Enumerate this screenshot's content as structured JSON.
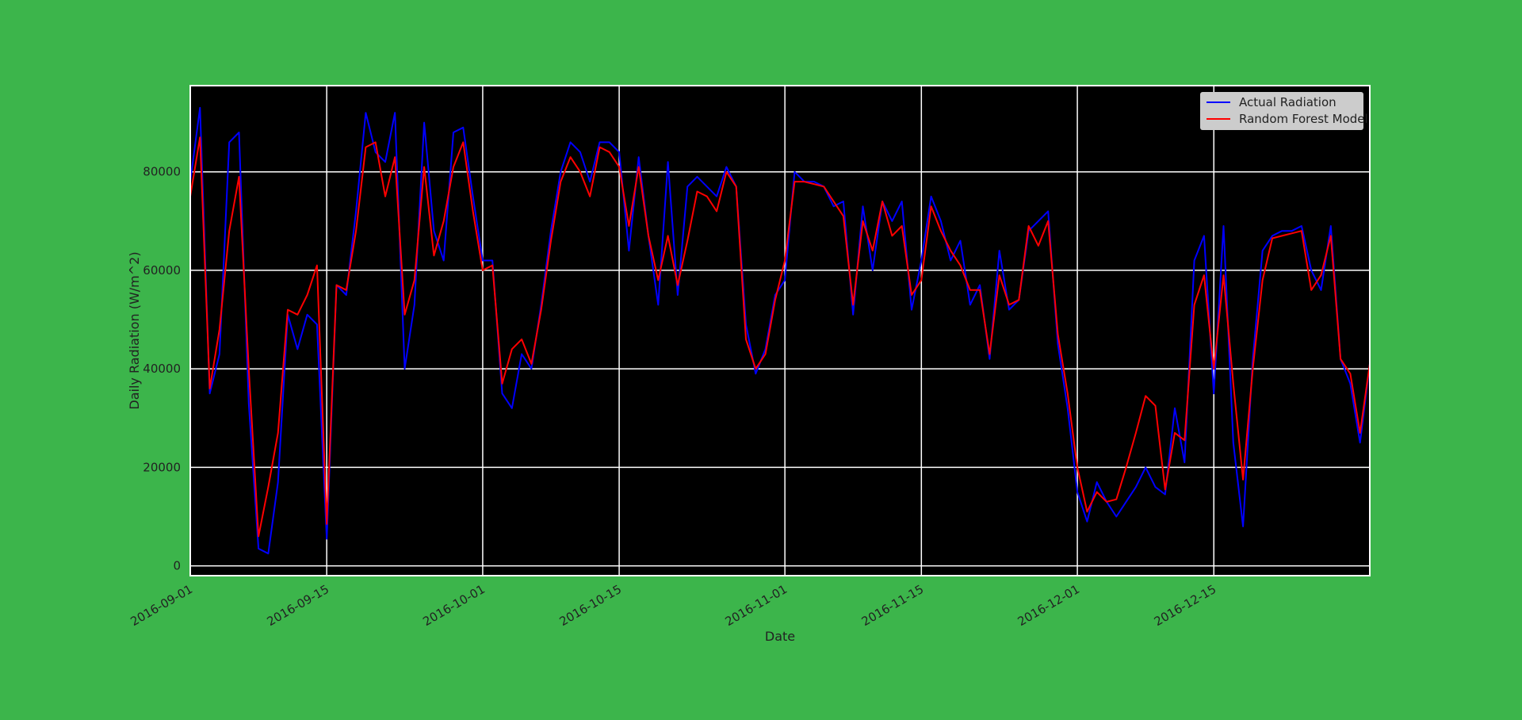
{
  "chart_data": {
    "type": "line",
    "title": "",
    "xlabel": "Date",
    "ylabel": "Daily Radiation (W/m^2)",
    "x_ticks": [
      "2016-09-01",
      "2016-09-15",
      "2016-10-01",
      "2016-10-15",
      "2016-11-01",
      "2016-11-15",
      "2016-12-01",
      "2016-12-15"
    ],
    "y_ticks": [
      0,
      20000,
      40000,
      60000,
      80000
    ],
    "xlim": [
      "2016-09-01",
      "2016-12-31"
    ],
    "ylim": [
      -2000,
      97500
    ],
    "grid": true,
    "background": "#000000",
    "legend_position": "top-right",
    "series": [
      {
        "name": "Actual Radiation",
        "color": "#0000ff",
        "points": [
          [
            "2016-09-01",
            78000
          ],
          [
            "2016-09-02",
            93000
          ],
          [
            "2016-09-03",
            35000
          ],
          [
            "2016-09-04",
            43000
          ],
          [
            "2016-09-05",
            86000
          ],
          [
            "2016-09-06",
            88000
          ],
          [
            "2016-09-07",
            33000
          ],
          [
            "2016-09-08",
            3500
          ],
          [
            "2016-09-09",
            2500
          ],
          [
            "2016-09-10",
            17000
          ],
          [
            "2016-09-11",
            51000
          ],
          [
            "2016-09-12",
            44000
          ],
          [
            "2016-09-13",
            51000
          ],
          [
            "2016-09-14",
            49000
          ],
          [
            "2016-09-15",
            5500
          ],
          [
            "2016-09-16",
            57000
          ],
          [
            "2016-09-17",
            55000
          ],
          [
            "2016-09-18",
            72000
          ],
          [
            "2016-09-19",
            92000
          ],
          [
            "2016-09-20",
            84000
          ],
          [
            "2016-09-21",
            82000
          ],
          [
            "2016-09-22",
            92000
          ],
          [
            "2016-09-23",
            40000
          ],
          [
            "2016-09-24",
            53000
          ],
          [
            "2016-09-25",
            90000
          ],
          [
            "2016-09-26",
            68000
          ],
          [
            "2016-09-27",
            62000
          ],
          [
            "2016-09-28",
            88000
          ],
          [
            "2016-09-29",
            89000
          ],
          [
            "2016-09-30",
            75000
          ],
          [
            "2016-10-01",
            62000
          ],
          [
            "2016-10-02",
            62000
          ],
          [
            "2016-10-03",
            35000
          ],
          [
            "2016-10-04",
            32000
          ],
          [
            "2016-10-05",
            43000
          ],
          [
            "2016-10-06",
            40000
          ],
          [
            "2016-10-07",
            53000
          ],
          [
            "2016-10-08",
            68000
          ],
          [
            "2016-10-09",
            80000
          ],
          [
            "2016-10-10",
            86000
          ],
          [
            "2016-10-11",
            84000
          ],
          [
            "2016-10-12",
            78000
          ],
          [
            "2016-10-13",
            86000
          ],
          [
            "2016-10-14",
            86000
          ],
          [
            "2016-10-15",
            84000
          ],
          [
            "2016-10-16",
            64000
          ],
          [
            "2016-10-17",
            83000
          ],
          [
            "2016-10-18",
            67000
          ],
          [
            "2016-10-19",
            53000
          ],
          [
            "2016-10-20",
            82000
          ],
          [
            "2016-10-21",
            55000
          ],
          [
            "2016-10-22",
            77000
          ],
          [
            "2016-10-23",
            79000
          ],
          [
            "2016-10-24",
            77000
          ],
          [
            "2016-10-25",
            75000
          ],
          [
            "2016-10-26",
            81000
          ],
          [
            "2016-10-27",
            77000
          ],
          [
            "2016-10-28",
            49000
          ],
          [
            "2016-10-29",
            39000
          ],
          [
            "2016-10-30",
            44000
          ],
          [
            "2016-10-31",
            55000
          ],
          [
            "2016-11-01",
            58000
          ],
          [
            "2016-11-02",
            80000
          ],
          [
            "2016-11-03",
            78000
          ],
          [
            "2016-11-04",
            78000
          ],
          [
            "2016-11-05",
            77000
          ],
          [
            "2016-11-06",
            73000
          ],
          [
            "2016-11-07",
            74000
          ],
          [
            "2016-11-08",
            51000
          ],
          [
            "2016-11-09",
            73000
          ],
          [
            "2016-11-10",
            60000
          ],
          [
            "2016-11-11",
            74000
          ],
          [
            "2016-11-12",
            70000
          ],
          [
            "2016-11-13",
            74000
          ],
          [
            "2016-11-14",
            52000
          ],
          [
            "2016-11-15",
            62000
          ],
          [
            "2016-11-16",
            75000
          ],
          [
            "2016-11-17",
            70000
          ],
          [
            "2016-11-18",
            62000
          ],
          [
            "2016-11-19",
            66000
          ],
          [
            "2016-11-20",
            53000
          ],
          [
            "2016-11-21",
            57000
          ],
          [
            "2016-11-22",
            42000
          ],
          [
            "2016-11-23",
            64000
          ],
          [
            "2016-11-24",
            52000
          ],
          [
            "2016-11-25",
            54000
          ],
          [
            "2016-11-26",
            68000
          ],
          [
            "2016-11-27",
            70000
          ],
          [
            "2016-11-28",
            72000
          ],
          [
            "2016-11-29",
            45000
          ],
          [
            "2016-11-30",
            32000
          ],
          [
            "2016-12-01",
            15000
          ],
          [
            "2016-12-02",
            9000
          ],
          [
            "2016-12-03",
            17000
          ],
          [
            "2016-12-04",
            13000
          ],
          [
            "2016-12-05",
            10000
          ],
          [
            "2016-12-06",
            13000
          ],
          [
            "2016-12-07",
            16000
          ],
          [
            "2016-12-08",
            20000
          ],
          [
            "2016-12-09",
            16000
          ],
          [
            "2016-12-10",
            14500
          ],
          [
            "2016-12-11",
            32000
          ],
          [
            "2016-12-12",
            21000
          ],
          [
            "2016-12-13",
            62000
          ],
          [
            "2016-12-14",
            67000
          ],
          [
            "2016-12-15",
            35000
          ],
          [
            "2016-12-16",
            69000
          ],
          [
            "2016-12-17",
            25000
          ],
          [
            "2016-12-18",
            8000
          ],
          [
            "2016-12-19",
            42000
          ],
          [
            "2016-12-20",
            64000
          ],
          [
            "2016-12-21",
            67000
          ],
          [
            "2016-12-22",
            68000
          ],
          [
            "2016-12-23",
            68000
          ],
          [
            "2016-12-24",
            69000
          ],
          [
            "2016-12-25",
            60000
          ],
          [
            "2016-12-26",
            56000
          ],
          [
            "2016-12-27",
            69000
          ],
          [
            "2016-12-28",
            42000
          ],
          [
            "2016-12-29",
            37000
          ],
          [
            "2016-12-30",
            25000
          ],
          [
            "2016-12-31",
            41000
          ]
        ]
      },
      {
        "name": "Random Forest Model",
        "color": "#ff0000",
        "points": [
          [
            "2016-09-01",
            75000
          ],
          [
            "2016-09-02",
            87000
          ],
          [
            "2016-09-03",
            36000
          ],
          [
            "2016-09-04",
            48000
          ],
          [
            "2016-09-05",
            68000
          ],
          [
            "2016-09-06",
            79000
          ],
          [
            "2016-09-07",
            40000
          ],
          [
            "2016-09-08",
            6000
          ],
          [
            "2016-09-09",
            16000
          ],
          [
            "2016-09-10",
            27000
          ],
          [
            "2016-09-11",
            52000
          ],
          [
            "2016-09-12",
            51000
          ],
          [
            "2016-09-13",
            55000
          ],
          [
            "2016-09-14",
            61000
          ],
          [
            "2016-09-15",
            8500
          ],
          [
            "2016-09-16",
            57000
          ],
          [
            "2016-09-17",
            56000
          ],
          [
            "2016-09-18",
            68000
          ],
          [
            "2016-09-19",
            85000
          ],
          [
            "2016-09-20",
            86000
          ],
          [
            "2016-09-21",
            75000
          ],
          [
            "2016-09-22",
            83000
          ],
          [
            "2016-09-23",
            51000
          ],
          [
            "2016-09-24",
            58000
          ],
          [
            "2016-09-25",
            81000
          ],
          [
            "2016-09-26",
            63000
          ],
          [
            "2016-09-27",
            70000
          ],
          [
            "2016-09-28",
            81000
          ],
          [
            "2016-09-29",
            86000
          ],
          [
            "2016-09-30",
            72000
          ],
          [
            "2016-10-01",
            60000
          ],
          [
            "2016-10-02",
            61000
          ],
          [
            "2016-10-03",
            37000
          ],
          [
            "2016-10-04",
            44000
          ],
          [
            "2016-10-05",
            46000
          ],
          [
            "2016-10-06",
            41000
          ],
          [
            "2016-10-07",
            52000
          ],
          [
            "2016-10-08",
            66000
          ],
          [
            "2016-10-09",
            78000
          ],
          [
            "2016-10-10",
            83000
          ],
          [
            "2016-10-11",
            80000
          ],
          [
            "2016-10-12",
            75000
          ],
          [
            "2016-10-13",
            85000
          ],
          [
            "2016-10-14",
            84000
          ],
          [
            "2016-10-15",
            81000
          ],
          [
            "2016-10-16",
            69000
          ],
          [
            "2016-10-17",
            81000
          ],
          [
            "2016-10-18",
            67000
          ],
          [
            "2016-10-19",
            58000
          ],
          [
            "2016-10-20",
            67000
          ],
          [
            "2016-10-21",
            57000
          ],
          [
            "2016-10-22",
            66000
          ],
          [
            "2016-10-23",
            76000
          ],
          [
            "2016-10-24",
            75000
          ],
          [
            "2016-10-25",
            72000
          ],
          [
            "2016-10-26",
            80000
          ],
          [
            "2016-10-27",
            77000
          ],
          [
            "2016-10-28",
            46000
          ],
          [
            "2016-10-29",
            40000
          ],
          [
            "2016-10-30",
            43000
          ],
          [
            "2016-10-31",
            54000
          ],
          [
            "2016-11-01",
            62000
          ],
          [
            "2016-11-02",
            78000
          ],
          [
            "2016-11-03",
            78000
          ],
          [
            "2016-11-04",
            77500
          ],
          [
            "2016-11-05",
            77000
          ],
          [
            "2016-11-06",
            74000
          ],
          [
            "2016-11-07",
            71000
          ],
          [
            "2016-11-08",
            53000
          ],
          [
            "2016-11-09",
            70000
          ],
          [
            "2016-11-10",
            64000
          ],
          [
            "2016-11-11",
            74000
          ],
          [
            "2016-11-12",
            67000
          ],
          [
            "2016-11-13",
            69000
          ],
          [
            "2016-11-14",
            55000
          ],
          [
            "2016-11-15",
            58000
          ],
          [
            "2016-11-16",
            73000
          ],
          [
            "2016-11-17",
            68000
          ],
          [
            "2016-11-18",
            64000
          ],
          [
            "2016-11-19",
            61000
          ],
          [
            "2016-11-20",
            56000
          ],
          [
            "2016-11-21",
            56000
          ],
          [
            "2016-11-22",
            43000
          ],
          [
            "2016-11-23",
            59000
          ],
          [
            "2016-11-24",
            53000
          ],
          [
            "2016-11-25",
            54000
          ],
          [
            "2016-11-26",
            69000
          ],
          [
            "2016-11-27",
            65000
          ],
          [
            "2016-11-28",
            70000
          ],
          [
            "2016-11-29",
            47000
          ],
          [
            "2016-11-30",
            35000
          ],
          [
            "2016-12-01",
            20000
          ],
          [
            "2016-12-02",
            11000
          ],
          [
            "2016-12-03",
            15000
          ],
          [
            "2016-12-04",
            13000
          ],
          [
            "2016-12-05",
            13500
          ],
          [
            "2016-12-06",
            20000
          ],
          [
            "2016-12-07",
            27000
          ],
          [
            "2016-12-08",
            34500
          ],
          [
            "2016-12-09",
            32500
          ],
          [
            "2016-12-10",
            15500
          ],
          [
            "2016-12-11",
            27000
          ],
          [
            "2016-12-12",
            25500
          ],
          [
            "2016-12-13",
            53000
          ],
          [
            "2016-12-14",
            59000
          ],
          [
            "2016-12-15",
            40000
          ],
          [
            "2016-12-16",
            59000
          ],
          [
            "2016-12-17",
            37000
          ],
          [
            "2016-12-18",
            17500
          ],
          [
            "2016-12-19",
            40000
          ],
          [
            "2016-12-20",
            58000
          ],
          [
            "2016-12-21",
            66500
          ],
          [
            "2016-12-22",
            67000
          ],
          [
            "2016-12-23",
            67500
          ],
          [
            "2016-12-24",
            68000
          ],
          [
            "2016-12-25",
            56000
          ],
          [
            "2016-12-26",
            59000
          ],
          [
            "2016-12-27",
            67000
          ],
          [
            "2016-12-28",
            42000
          ],
          [
            "2016-12-29",
            39000
          ],
          [
            "2016-12-30",
            27000
          ],
          [
            "2016-12-31",
            41000
          ]
        ]
      }
    ]
  }
}
